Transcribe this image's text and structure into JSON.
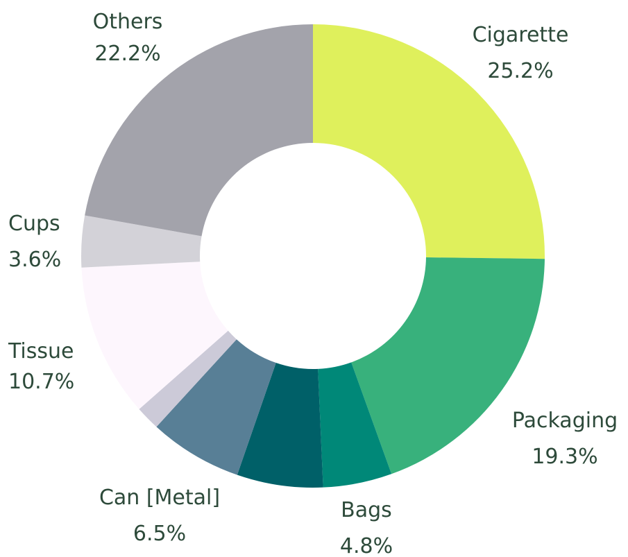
{
  "chart_data": {
    "type": "pie",
    "variant": "donut",
    "slices": [
      {
        "label": "Cigarette",
        "value_label": "25.2%",
        "value": 25.2,
        "color": "#dff05c"
      },
      {
        "label": "Packaging",
        "value_label": "19.3%",
        "value": 19.3,
        "color": "#38b17c"
      },
      {
        "label": "Bags",
        "value_label": "4.8%",
        "value": 4.8,
        "color": "#008878"
      },
      {
        "label": "",
        "value_label": "",
        "value": 6.0,
        "color": "#006068"
      },
      {
        "label": "Can [Metal]",
        "value_label": "6.5%",
        "value": 6.5,
        "color": "#587f96"
      },
      {
        "label": "",
        "value_label": "",
        "value": 1.7,
        "color": "#cccad8"
      },
      {
        "label": "Tissue",
        "value_label": "10.7%",
        "value": 10.7,
        "color": "#fdf6fd"
      },
      {
        "label": "Cups",
        "value_label": "3.6%",
        "value": 3.6,
        "color": "#d3d2d8"
      },
      {
        "label": "Others",
        "value_label": "22.2%",
        "value": 22.2,
        "color": "#a3a3ab"
      }
    ],
    "legend": "none"
  },
  "label_color": "#2d4a3a"
}
